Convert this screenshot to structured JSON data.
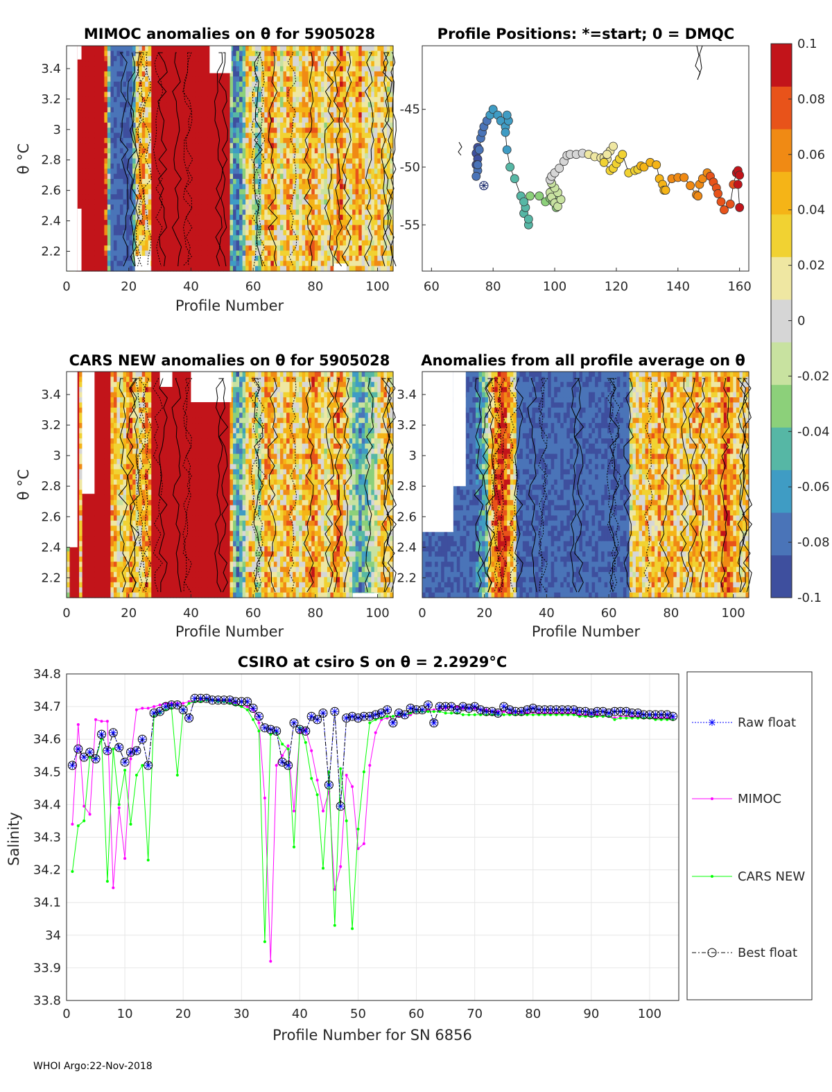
{
  "footer": "WHOI Argo:22-Nov-2018",
  "colorbar": {
    "ticks": [
      "0.1",
      "0.08",
      "0.06",
      "0.04",
      "0.02",
      "0",
      "-0.02",
      "-0.04",
      "-0.06",
      "-0.08",
      "-0.1"
    ],
    "range": [
      -0.1,
      0.1
    ],
    "colors": [
      "#3e4f9e",
      "#4a74b8",
      "#3f9cc4",
      "#56b7a5",
      "#8cd07a",
      "#c8e2a0",
      "#d6d6d6",
      "#efe7a2",
      "#f1d232",
      "#f5b417",
      "#f08a14",
      "#e8531a",
      "#c2141a"
    ]
  },
  "chart_data": [
    {
      "id": "mimoc-anom",
      "type": "heatmap",
      "title": "MIMOC anomalies on θ  for 5905028",
      "xlabel": "Profile Number",
      "ylabel": "θ °C",
      "xlim": [
        0,
        105
      ],
      "ylim": [
        2.07,
        3.55
      ],
      "xticks": [
        "0",
        "20",
        "40",
        "60",
        "80",
        "100"
      ],
      "yticks": [
        "2.2",
        "2.4",
        "2.6",
        "2.8",
        "3",
        "3.2",
        "3.4"
      ],
      "column_anomaly": [
        0,
        0,
        0.01,
        0.1,
        0.1,
        0.1,
        0.1,
        0.1,
        0.1,
        0.1,
        0.1,
        0.1,
        0.08,
        -0.04,
        -0.09,
        -0.09,
        -0.09,
        -0.09,
        -0.09,
        -0.09,
        -0.09,
        -0.05,
        0.03,
        0.04,
        0.05,
        0.03,
        0.03,
        0.1,
        0.1,
        0.1,
        0.1,
        0.1,
        0.1,
        0.1,
        0.1,
        0.1,
        0.1,
        0.1,
        0.1,
        0.1,
        0.1,
        0.1,
        0.1,
        0.1,
        0.1,
        0.1,
        0.1,
        0.1,
        0.1,
        0.1,
        0.1,
        0.1,
        -0.05,
        -0.08,
        -0.07,
        -0.06,
        -0.04,
        0.03,
        0.04,
        0.01,
        -0.03,
        -0.03,
        0.02,
        0.04,
        0.05,
        0.06,
        0.04,
        0.02,
        0.0,
        0.03,
        0.05,
        0.04,
        0.02,
        0.01,
        0.02,
        0.03,
        0.04,
        0.05,
        0.05,
        0.04,
        0.03,
        0.02,
        0.01,
        0.03,
        0.04,
        0.03,
        0.05,
        0.06,
        0.04,
        0.03,
        0.02,
        0.04,
        0.05,
        0.06,
        0.03,
        0.02,
        0.01,
        0.02,
        0.03,
        0.04,
        0.03,
        0.02,
        0.01,
        0.02
      ]
    },
    {
      "id": "positions",
      "type": "scatter",
      "title": "Profile Positions: *=start; 0 = DMQC",
      "xlim": [
        57,
        163
      ],
      "ylim": [
        -59,
        -39.5
      ],
      "xticks": [
        "60",
        "80",
        "100",
        "120",
        "140",
        "160"
      ],
      "yticks": [
        "-45",
        "-50",
        "-55"
      ],
      "start": {
        "lon": 77,
        "lat": -51.6
      },
      "lon": [
        75.5,
        75,
        74.5,
        75,
        74.5,
        75,
        74.5,
        75,
        75.5,
        76,
        76.5,
        77,
        78,
        79,
        80,
        81.5,
        82.5,
        84,
        85,
        84.5,
        84,
        84.5,
        85.5,
        87,
        89,
        90,
        91.5,
        91.5,
        90.5,
        90,
        92,
        95,
        97,
        98.5,
        99.5,
        100.5,
        101.5,
        100,
        99,
        98.5,
        99,
        100,
        101,
        102,
        101,
        100,
        99,
        98.5,
        99,
        100,
        101.5,
        103,
        104,
        105,
        107,
        109,
        111,
        113,
        115,
        116,
        117,
        118,
        119,
        117,
        116,
        118,
        119,
        120,
        121,
        122,
        124,
        126,
        127,
        128,
        129,
        131,
        133,
        134,
        135,
        135.5,
        136,
        138,
        140,
        142,
        144,
        146,
        146.5,
        147,
        148,
        149.5,
        150.5,
        151.5,
        152.5,
        153,
        154,
        155,
        157,
        158,
        159,
        159.5,
        160,
        159.5,
        160
      ],
      "lat": [
        -48.5,
        -48.3,
        -48.8,
        -49.3,
        -49.8,
        -50.3,
        -50.8,
        -49.8,
        -48.5,
        -47.5,
        -47,
        -46.5,
        -46,
        -45.5,
        -45,
        -45.5,
        -46,
        -46.5,
        -46,
        -45.5,
        -47,
        -48.5,
        -50,
        -51,
        -52.5,
        -54,
        -55,
        -54.5,
        -53.5,
        -53,
        -52.5,
        -52.5,
        -53,
        -52.7,
        -53,
        -53.5,
        -52.8,
        -52.4,
        -52.1,
        -52.2,
        -52.6,
        -53.1,
        -53.4,
        -52.8,
        -52.2,
        -51.8,
        -51.4,
        -51.1,
        -50.8,
        -50.5,
        -50.1,
        -49.5,
        -49,
        -48.9,
        -48.9,
        -48.8,
        -48.9,
        -49.1,
        -49.2,
        -49.2,
        -49.3,
        -48.6,
        -48.2,
        -48.9,
        -49.6,
        -50.3,
        -50.1,
        -49.7,
        -49.3,
        -48.9,
        -50.5,
        -50.3,
        -50.2,
        -49.9,
        -50,
        -49.6,
        -49.8,
        -51,
        -51.5,
        -52,
        -52,
        -51,
        -50.9,
        -50.9,
        -51.6,
        -52.4,
        -52.5,
        -51.5,
        -51,
        -50.5,
        -50.8,
        -51.3,
        -51.8,
        -52.3,
        -53,
        -53.7,
        -53.2,
        -51.5,
        -50.5,
        -50.3,
        -50.7,
        -51.5,
        -53.5
      ]
    },
    {
      "id": "cars-anom",
      "type": "heatmap",
      "title": "CARS NEW anomalies on θ for 5905028",
      "xlabel": "Profile Number",
      "ylabel": "θ °C",
      "xlim": [
        0,
        105
      ],
      "ylim": [
        2.07,
        3.55
      ],
      "xticks": [
        "0",
        "20",
        "40",
        "60",
        "80",
        "100"
      ],
      "yticks": [
        "2.2",
        "2.4",
        "2.6",
        "2.8",
        "3",
        "3.2",
        "3.4"
      ],
      "column_anomaly": [
        0,
        0.1,
        0.1,
        0.1,
        0.03,
        0.1,
        0.1,
        0.1,
        0.1,
        0.1,
        0.1,
        0.1,
        0.1,
        0.1,
        0.04,
        0.05,
        0.02,
        0.02,
        0.03,
        0.05,
        0.06,
        0.04,
        0.02,
        0.03,
        0.04,
        0.06,
        0.05,
        0.1,
        0.1,
        0.1,
        0.1,
        0.1,
        0.1,
        0.1,
        0.1,
        0.1,
        0.1,
        0.1,
        0.1,
        0.1,
        0.1,
        0.1,
        0.1,
        0.1,
        0.1,
        0.1,
        0.1,
        0.1,
        0.1,
        0.1,
        0.1,
        0.1,
        0.04,
        -0.04,
        -0.06,
        -0.05,
        -0.03,
        0.02,
        0.04,
        0.03,
        -0.01,
        -0.02,
        0.02,
        0.05,
        0.05,
        0.04,
        0.03,
        0.02,
        0.03,
        0.04,
        0.05,
        0.04,
        0.03,
        0.02,
        0.01,
        0.03,
        0.04,
        0.05,
        0.06,
        0.05,
        0.04,
        0.03,
        0.01,
        0.02,
        0.04,
        0.05,
        0.06,
        0.05,
        0.03,
        0.02,
        -0.02,
        -0.04,
        -0.05,
        -0.06,
        -0.05,
        -0.04,
        -0.03,
        -0.02,
        -0.01,
        0.02,
        0.03,
        0.04,
        0.03,
        0.02
      ]
    },
    {
      "id": "all-avg-anom",
      "type": "heatmap",
      "title": "Anomalies from all profile average on θ",
      "xlabel": "Profile Number",
      "xlim": [
        0,
        105
      ],
      "ylim": [
        2.07,
        3.55
      ],
      "xticks": [
        "0",
        "20",
        "40",
        "60",
        "80",
        "100"
      ],
      "yticks": [
        "2.2",
        "2.4",
        "2.6",
        "2.8",
        "3",
        "3.2",
        "3.4"
      ],
      "column_anomaly": [
        -0.09,
        -0.09,
        -0.09,
        -0.09,
        -0.09,
        -0.09,
        -0.09,
        -0.09,
        -0.09,
        -0.09,
        -0.09,
        -0.09,
        -0.09,
        -0.09,
        -0.09,
        -0.09,
        -0.09,
        -0.08,
        -0.07,
        -0.05,
        -0.04,
        0.03,
        0.05,
        0.07,
        0.08,
        0.09,
        0.08,
        0.06,
        0.04,
        0.02,
        -0.09,
        -0.09,
        -0.09,
        -0.09,
        -0.09,
        -0.09,
        -0.09,
        -0.09,
        -0.09,
        -0.09,
        -0.09,
        -0.09,
        -0.09,
        -0.09,
        -0.09,
        -0.09,
        -0.09,
        -0.09,
        -0.09,
        -0.09,
        -0.09,
        -0.09,
        -0.09,
        -0.09,
        -0.09,
        -0.09,
        -0.09,
        -0.09,
        -0.09,
        -0.09,
        -0.09,
        -0.09,
        -0.09,
        -0.09,
        -0.09,
        -0.09,
        0.01,
        0.02,
        0.03,
        0.03,
        0.02,
        0.04,
        0.03,
        0.04,
        0.03,
        0.05,
        0.04,
        0.03,
        0.04,
        0.05,
        0.04,
        0.03,
        0.04,
        0.03,
        0.02,
        0.03,
        0.04,
        0.05,
        0.04,
        0.03,
        0.04,
        0.05,
        0.04,
        0.03,
        0.05,
        0.06,
        0.08,
        0.07,
        0.05,
        0.04,
        0.03,
        0.02,
        0.03,
        0.04
      ]
    },
    {
      "id": "salinity",
      "type": "line",
      "title": "CSIRO at csiro S on θ = 2.2929°C",
      "xlabel": "Profile Number for SN 6856",
      "ylabel": "Salinity",
      "xlim": [
        0,
        105
      ],
      "ylim": [
        33.8,
        34.8
      ],
      "xticks": [
        "0",
        "10",
        "20",
        "30",
        "40",
        "50",
        "60",
        "70",
        "80",
        "90",
        "100"
      ],
      "yticks": [
        "34.8",
        "34.7",
        "34.6",
        "34.5",
        "34.4",
        "34.3",
        "34.2",
        "34.1",
        "34",
        "33.9",
        "33.8"
      ],
      "legend": [
        "Raw float",
        "MIMOC",
        "CARS NEW",
        "Best float"
      ],
      "series": [
        {
          "name": "Raw float",
          "color": "#0000ff",
          "values": [
            34.52,
            34.57,
            34.545,
            34.56,
            34.54,
            34.615,
            34.565,
            34.62,
            34.575,
            34.53,
            34.56,
            34.565,
            34.6,
            34.52,
            34.68,
            34.685,
            34.7,
            34.705,
            34.705,
            34.69,
            34.665,
            34.725,
            34.725,
            34.725,
            34.72,
            34.72,
            34.72,
            34.72,
            34.715,
            34.715,
            34.715,
            34.695,
            34.67,
            34.635,
            34.63,
            34.625,
            34.53,
            34.52,
            34.65,
            34.63,
            34.625,
            34.67,
            34.66,
            34.68,
            34.46,
            34.685,
            34.395,
            34.665,
            34.67,
            34.665,
            34.67,
            34.67,
            34.675,
            34.68,
            34.69,
            34.65,
            34.68,
            34.675,
            34.695,
            34.69,
            34.69,
            34.705,
            34.65,
            34.7,
            34.7,
            34.7,
            34.69,
            34.7,
            34.695,
            34.7,
            34.69,
            34.685,
            34.685,
            34.68,
            34.7,
            34.69,
            34.685,
            34.685,
            34.69,
            34.695,
            34.69,
            34.69,
            34.69,
            34.69,
            34.69,
            34.69,
            34.69,
            34.685,
            34.685,
            34.68,
            34.685,
            34.685,
            34.68,
            34.685,
            34.685,
            34.685,
            34.68,
            34.68,
            34.675,
            34.675,
            34.675,
            34.675,
            34.675,
            34.67
          ]
        },
        {
          "name": "MIMOC",
          "color": "#ff00ff",
          "values": [
            34.34,
            34.645,
            34.395,
            34.37,
            34.66,
            34.655,
            34.655,
            34.145,
            34.39,
            34.235,
            34.54,
            34.69,
            34.695,
            34.695,
            34.7,
            34.705,
            34.71,
            34.71,
            34.71,
            34.71,
            34.715,
            34.715,
            34.72,
            34.72,
            34.72,
            34.72,
            34.715,
            34.715,
            34.71,
            34.7,
            34.7,
            34.69,
            34.65,
            34.42,
            33.92,
            34.52,
            34.55,
            34.58,
            34.38,
            34.62,
            34.63,
            34.565,
            34.475,
            34.38,
            34.44,
            34.14,
            34.21,
            34.49,
            34.455,
            34.265,
            34.28,
            34.52,
            34.62,
            34.66,
            34.665,
            34.67,
            34.67,
            34.675,
            34.675,
            34.685,
            34.685,
            34.69,
            34.69,
            34.695,
            34.695,
            34.7,
            34.7,
            34.695,
            34.695,
            34.695,
            34.69,
            34.69,
            34.685,
            34.685,
            34.685,
            34.68,
            34.68,
            34.68,
            34.68,
            34.68,
            34.68,
            34.68,
            34.68,
            34.68,
            34.68,
            34.68,
            34.68,
            34.675,
            34.675,
            34.675,
            34.675,
            34.67,
            34.67,
            34.665,
            34.67,
            34.67,
            34.67,
            34.67,
            34.665,
            34.665,
            34.665,
            34.665,
            34.665,
            34.665
          ]
        },
        {
          "name": "CARS NEW",
          "color": "#00ff00",
          "values": [
            34.195,
            34.335,
            34.35,
            34.545,
            34.54,
            34.6,
            34.165,
            34.57,
            34.4,
            34.505,
            34.34,
            34.49,
            34.52,
            34.23,
            34.67,
            34.68,
            34.69,
            34.695,
            34.49,
            34.69,
            34.71,
            34.715,
            34.715,
            34.72,
            34.72,
            34.715,
            34.715,
            34.71,
            34.705,
            34.7,
            34.69,
            34.66,
            34.625,
            33.98,
            34.615,
            34.62,
            34.585,
            34.57,
            34.27,
            34.635,
            34.59,
            34.48,
            34.43,
            34.205,
            34.5,
            34.03,
            34.51,
            34.35,
            34.02,
            34.325,
            34.5,
            34.65,
            34.66,
            34.665,
            34.67,
            34.67,
            34.675,
            34.675,
            34.68,
            34.685,
            34.685,
            34.685,
            34.685,
            34.685,
            34.68,
            34.68,
            34.68,
            34.675,
            34.675,
            34.675,
            34.675,
            34.675,
            34.675,
            34.675,
            34.675,
            34.675,
            34.675,
            34.675,
            34.675,
            34.675,
            34.675,
            34.675,
            34.675,
            34.675,
            34.675,
            34.675,
            34.675,
            34.67,
            34.67,
            34.67,
            34.67,
            34.67,
            34.67,
            34.66,
            34.665,
            34.665,
            34.665,
            34.665,
            34.665,
            34.665,
            34.66,
            34.66,
            34.66,
            34.66
          ]
        },
        {
          "name": "Best float",
          "color": "#000000",
          "values": [
            34.52,
            34.57,
            34.545,
            34.56,
            34.54,
            34.615,
            34.565,
            34.62,
            34.575,
            34.53,
            34.56,
            34.565,
            34.6,
            34.52,
            34.68,
            34.685,
            34.7,
            34.705,
            34.705,
            34.69,
            34.665,
            34.725,
            34.725,
            34.725,
            34.72,
            34.72,
            34.72,
            34.72,
            34.715,
            34.715,
            34.715,
            34.695,
            34.67,
            34.635,
            34.63,
            34.625,
            34.53,
            34.52,
            34.65,
            34.63,
            34.625,
            34.67,
            34.66,
            34.68,
            34.46,
            34.685,
            34.395,
            34.665,
            34.67,
            34.665,
            34.67,
            34.67,
            34.675,
            34.68,
            34.69,
            34.65,
            34.68,
            34.675,
            34.695,
            34.69,
            34.69,
            34.705,
            34.65,
            34.7,
            34.7,
            34.7,
            34.69,
            34.7,
            34.695,
            34.7,
            34.69,
            34.685,
            34.685,
            34.68,
            34.7,
            34.69,
            34.685,
            34.685,
            34.69,
            34.695,
            34.69,
            34.69,
            34.69,
            34.69,
            34.69,
            34.69,
            34.69,
            34.685,
            34.685,
            34.68,
            34.685,
            34.685,
            34.68,
            34.685,
            34.685,
            34.685,
            34.68,
            34.68,
            34.675,
            34.675,
            34.675,
            34.675,
            34.675,
            34.67
          ]
        }
      ]
    }
  ]
}
